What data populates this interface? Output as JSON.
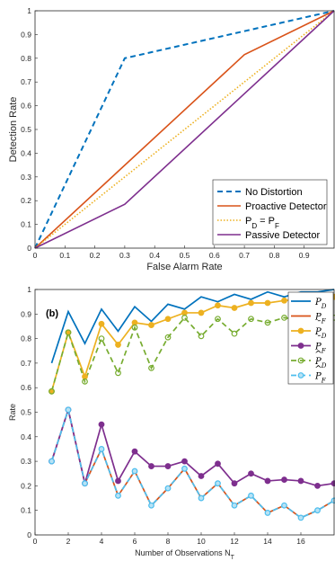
{
  "chart_data": [
    {
      "type": "line",
      "title": "",
      "xlabel": "False Alarm Rate",
      "ylabel": "Detection Rate",
      "xlim": [
        0,
        1
      ],
      "ylim": [
        0,
        1
      ],
      "xticks": [
        "0",
        "0.1",
        "0.2",
        "0.3",
        "0.4",
        "0.5",
        "0.6",
        "0.7",
        "0.8",
        "0.9"
      ],
      "yticks": [
        "0",
        "0.1",
        "0.2",
        "0.3",
        "0.4",
        "0.5",
        "0.6",
        "0.7",
        "0.8",
        "0.9",
        "1"
      ],
      "legend_position": "bottom-right",
      "series": [
        {
          "name": "No Distortion",
          "color": "#0072BD",
          "style": "dashed",
          "x": [
            0,
            0.3,
            1
          ],
          "y": [
            0,
            0.8,
            1
          ]
        },
        {
          "name": "Proactive Detector",
          "color": "#D95319",
          "style": "solid",
          "x": [
            0,
            0.7,
            1
          ],
          "y": [
            0,
            0.815,
            1
          ]
        },
        {
          "name": "P",
          "name_sub1": "D",
          "name_eq": " = P",
          "name_sub2": "F",
          "color": "#EDB120",
          "style": "dotted",
          "x": [
            0,
            1
          ],
          "y": [
            0,
            1
          ]
        },
        {
          "name": "Passive Detector",
          "color": "#7E2F8E",
          "style": "solid",
          "x": [
            0,
            0.3,
            1
          ],
          "y": [
            0,
            0.185,
            1
          ]
        }
      ]
    },
    {
      "type": "line",
      "panel_label": "(b)",
      "xlabel": "Number of Observations N",
      "xlabel_sub": "T",
      "ylabel": "Rate",
      "xlim": [
        0,
        18
      ],
      "ylim": [
        0,
        1
      ],
      "xticks": [
        "0",
        "2",
        "4",
        "6",
        "8",
        "10",
        "12",
        "14",
        "16"
      ],
      "yticks": [
        "0",
        "0.1",
        "0.2",
        "0.3",
        "0.4",
        "0.5",
        "0.6",
        "0.7",
        "0.8",
        "0.9",
        "1"
      ],
      "legend_position": "top-right",
      "x": [
        1,
        2,
        3,
        4,
        5,
        6,
        7,
        8,
        9,
        10,
        11,
        12,
        13,
        14,
        15,
        16,
        17,
        18
      ],
      "series": [
        {
          "name": "P",
          "sub": "D",
          "accent": "",
          "color": "#0072BD",
          "style": "solid",
          "marker": "none",
          "values": [
            0.7,
            0.91,
            0.78,
            0.92,
            0.83,
            0.93,
            0.87,
            0.94,
            0.92,
            0.97,
            0.95,
            0.98,
            0.96,
            0.99,
            0.97,
            0.99,
            0.99,
            1.0
          ]
        },
        {
          "name": "P",
          "sub": "F",
          "accent": "",
          "color": "#D95319",
          "style": "solid",
          "marker": "none",
          "values": [
            0.3,
            0.51,
            0.21,
            0.35,
            0.16,
            0.26,
            0.12,
            0.19,
            0.27,
            0.15,
            0.21,
            0.12,
            0.16,
            0.09,
            0.12,
            0.07,
            0.1,
            0.14
          ]
        },
        {
          "name": "P",
          "sub": "D",
          "accent": "¯",
          "color": "#EDB120",
          "style": "solid",
          "marker": "filled",
          "values": [
            0.585,
            0.825,
            0.645,
            0.86,
            0.775,
            0.865,
            0.855,
            0.88,
            0.905,
            0.905,
            0.935,
            0.925,
            0.945,
            0.945,
            0.955,
            0.96,
            0.97,
            0.97
          ]
        },
        {
          "name": "P",
          "sub": "F",
          "accent": "¯",
          "color": "#7E2F8E",
          "style": "solid",
          "marker": "filled",
          "values": [
            0.3,
            0.51,
            0.21,
            0.45,
            0.22,
            0.34,
            0.28,
            0.28,
            0.3,
            0.24,
            0.29,
            0.21,
            0.25,
            0.22,
            0.225,
            0.22,
            0.2,
            0.21
          ]
        },
        {
          "name": "P",
          "sub": "D",
          "accent": "^",
          "color": "#77AC30",
          "style": "dashed",
          "marker": "open",
          "values": [
            0.585,
            0.825,
            0.625,
            0.8,
            0.66,
            0.845,
            0.68,
            0.805,
            0.885,
            0.81,
            0.88,
            0.82,
            0.88,
            0.865,
            0.885,
            0.875,
            0.89,
            0.885
          ]
        },
        {
          "name": "P",
          "sub": "F",
          "accent": "^",
          "color": "#4DBEEE",
          "style": "dashed",
          "marker": "open",
          "values": [
            0.3,
            0.51,
            0.21,
            0.35,
            0.16,
            0.26,
            0.12,
            0.19,
            0.27,
            0.15,
            0.21,
            0.12,
            0.16,
            0.09,
            0.12,
            0.07,
            0.1,
            0.14
          ]
        }
      ]
    }
  ]
}
